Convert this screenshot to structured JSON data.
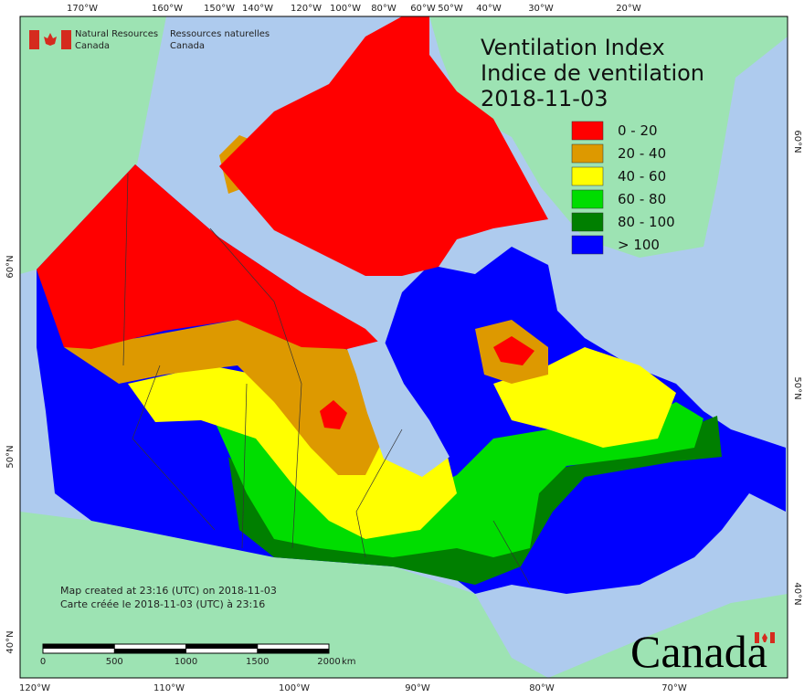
{
  "agency": {
    "en": [
      "Natural Resources",
      "Canada"
    ],
    "fr": [
      "Ressources naturelles",
      "Canada"
    ]
  },
  "title": [
    "Ventilation Index",
    "Indice de ventilation",
    "2018-11-03"
  ],
  "legend": [
    {
      "label": "0 - 20",
      "color": "#ff0000"
    },
    {
      "label": "20 - 40",
      "color": "#dd9900"
    },
    {
      "label": "40 - 60",
      "color": "#ffff00"
    },
    {
      "label": "60 - 80",
      "color": "#00dd00"
    },
    {
      "label": "80 - 100",
      "color": "#007f00"
    },
    {
      "label": "> 100",
      "color": "#0000ff"
    }
  ],
  "graticule": {
    "top": [
      "170°W",
      "160°W",
      "150°W",
      "140°W",
      "120°W",
      "100°W",
      "80°W",
      "60°W",
      "50°W",
      "40°W",
      "30°W",
      "20°W"
    ],
    "bottom": [
      "120°W",
      "110°W",
      "100°W",
      "90°W",
      "80°W",
      "70°W"
    ],
    "left": [
      "60°N",
      "50°N",
      "40°N"
    ],
    "right": [
      "60°N",
      "50°N",
      "40°N"
    ]
  },
  "footer": [
    "Map created at 23:16 (UTC) on 2018-11-03",
    "Carte créée le 2018-11-03 (UTC) à 23:16"
  ],
  "scale": {
    "ticks": [
      0,
      500,
      1000,
      1500,
      2000
    ],
    "unit": "km"
  },
  "wordmark": "Canada"
}
